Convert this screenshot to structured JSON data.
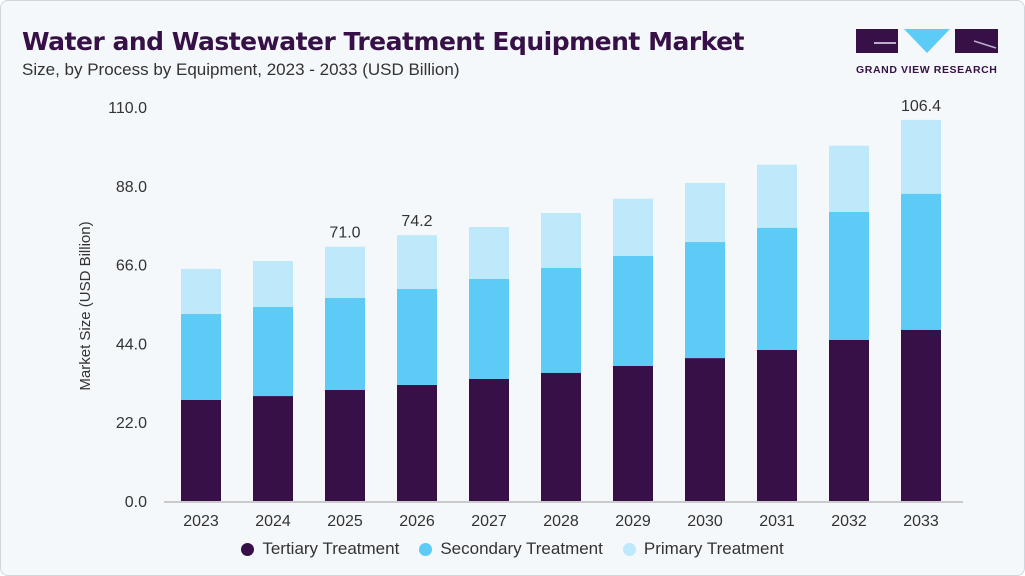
{
  "title": "Water and Wastewater Treatment Equipment Market",
  "subtitle": "Size, by Process by Equipment, 2023 - 2033 (USD Billion)",
  "logo": {
    "text": "GRAND VIEW RESEARCH",
    "colors": [
      "#361046",
      "#5ccbf5"
    ]
  },
  "chart_data": {
    "type": "bar",
    "stacked": true,
    "categories": [
      "2023",
      "2024",
      "2025",
      "2026",
      "2027",
      "2028",
      "2029",
      "2030",
      "2031",
      "2032",
      "2033"
    ],
    "series": [
      {
        "name": "Tertiary Treatment",
        "color": "#361046",
        "values": [
          28.2,
          29.3,
          31.0,
          32.4,
          34.1,
          35.8,
          37.7,
          39.9,
          42.2,
          45.0,
          47.8
        ]
      },
      {
        "name": "Secondary Treatment",
        "color": "#5ccbf5",
        "values": [
          24.0,
          24.9,
          25.7,
          26.8,
          27.9,
          29.3,
          30.7,
          32.4,
          34.1,
          35.7,
          38.0
        ]
      },
      {
        "name": "Primary Treatment",
        "color": "#bde9fa",
        "values": [
          12.6,
          12.8,
          14.3,
          15.0,
          14.5,
          15.3,
          16.0,
          16.5,
          17.6,
          18.5,
          20.6
        ]
      }
    ],
    "data_labels": {
      "2025": "71.0",
      "2026": "74.2",
      "2033": "106.4"
    },
    "ylabel": "Market Size (USD Billion)",
    "xlabel": "",
    "ylim": [
      0,
      110
    ],
    "yticks": [
      "0.0",
      "22.0",
      "44.0",
      "66.0",
      "88.0",
      "110.0"
    ],
    "grid": false,
    "legend": "bottom"
  }
}
